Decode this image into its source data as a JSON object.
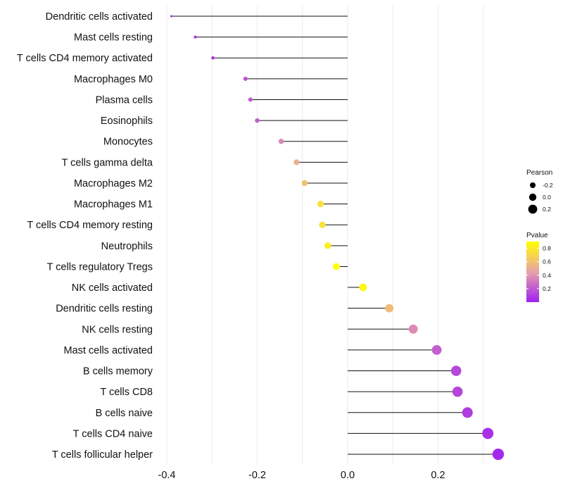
{
  "chart_data": {
    "type": "lollipop",
    "xlim": [
      -0.4,
      0.33
    ],
    "x_ticks": [
      {
        "value": -0.4,
        "label": "-0.4"
      },
      {
        "value": -0.2,
        "label": "-0.2"
      },
      {
        "value": 0.0,
        "label": "0.0"
      },
      {
        "value": 0.2,
        "label": "0.2"
      }
    ],
    "xlabel": "",
    "ylabel": "",
    "grid": true,
    "points": [
      {
        "label": "Dendritic cells activated",
        "pearson": -0.39,
        "pvalue": 0.01
      },
      {
        "label": "Mast cells resting",
        "pearson": -0.337,
        "pvalue": 0.03
      },
      {
        "label": "T cells CD4 memory activated",
        "pearson": -0.298,
        "pvalue": 0.06
      },
      {
        "label": "Macrophages M0",
        "pearson": -0.226,
        "pvalue": 0.17
      },
      {
        "label": "Plasma cells",
        "pearson": -0.215,
        "pvalue": 0.2
      },
      {
        "label": "Eosinophils",
        "pearson": -0.2,
        "pvalue": 0.22
      },
      {
        "label": "Monocytes",
        "pearson": -0.147,
        "pvalue": 0.36
      },
      {
        "label": "T cells gamma delta",
        "pearson": -0.113,
        "pvalue": 0.52
      },
      {
        "label": "Macrophages M2",
        "pearson": -0.095,
        "pvalue": 0.6
      },
      {
        "label": "Macrophages M1",
        "pearson": -0.06,
        "pvalue": 0.75
      },
      {
        "label": "T cells CD4 memory resting",
        "pearson": -0.056,
        "pvalue": 0.77
      },
      {
        "label": "Neutrophils",
        "pearson": -0.044,
        "pvalue": 0.82
      },
      {
        "label": "T cells regulatory  Tregs ",
        "pearson": -0.025,
        "pvalue": 0.9
      },
      {
        "label": "NK cells activated",
        "pearson": 0.034,
        "pvalue": 0.87
      },
      {
        "label": "Dendritic cells resting",
        "pearson": 0.092,
        "pvalue": 0.58
      },
      {
        "label": "NK cells resting",
        "pearson": 0.145,
        "pvalue": 0.37
      },
      {
        "label": "Mast cells activated",
        "pearson": 0.197,
        "pvalue": 0.22
      },
      {
        "label": "B cells memory",
        "pearson": 0.24,
        "pvalue": 0.14
      },
      {
        "label": "T cells CD8",
        "pearson": 0.243,
        "pvalue": 0.13
      },
      {
        "label": "B cells naive",
        "pearson": 0.265,
        "pvalue": 0.1
      },
      {
        "label": "T cells CD4 naive",
        "pearson": 0.31,
        "pvalue": 0.05
      },
      {
        "label": "T cells follicular helper",
        "pearson": 0.333,
        "pvalue": 0.03
      }
    ],
    "legend_size": {
      "title": "Pearson",
      "entries": [
        {
          "label": "-0.2",
          "value": -0.2
        },
        {
          "label": "0.0",
          "value": 0.0
        },
        {
          "label": "0.2",
          "value": 0.2
        }
      ]
    },
    "legend_color": {
      "title": "Pvalue",
      "ticks": [
        {
          "label": "0.8",
          "value": 0.8
        },
        {
          "label": "0.6",
          "value": 0.6
        },
        {
          "label": "0.4",
          "value": 0.4
        },
        {
          "label": "0.2",
          "value": 0.2
        }
      ],
      "range": [
        0.0,
        0.9
      ],
      "colors": [
        "#a020f0",
        "#e8a2a8",
        "#ffff00"
      ]
    },
    "legend_placement": "right"
  }
}
